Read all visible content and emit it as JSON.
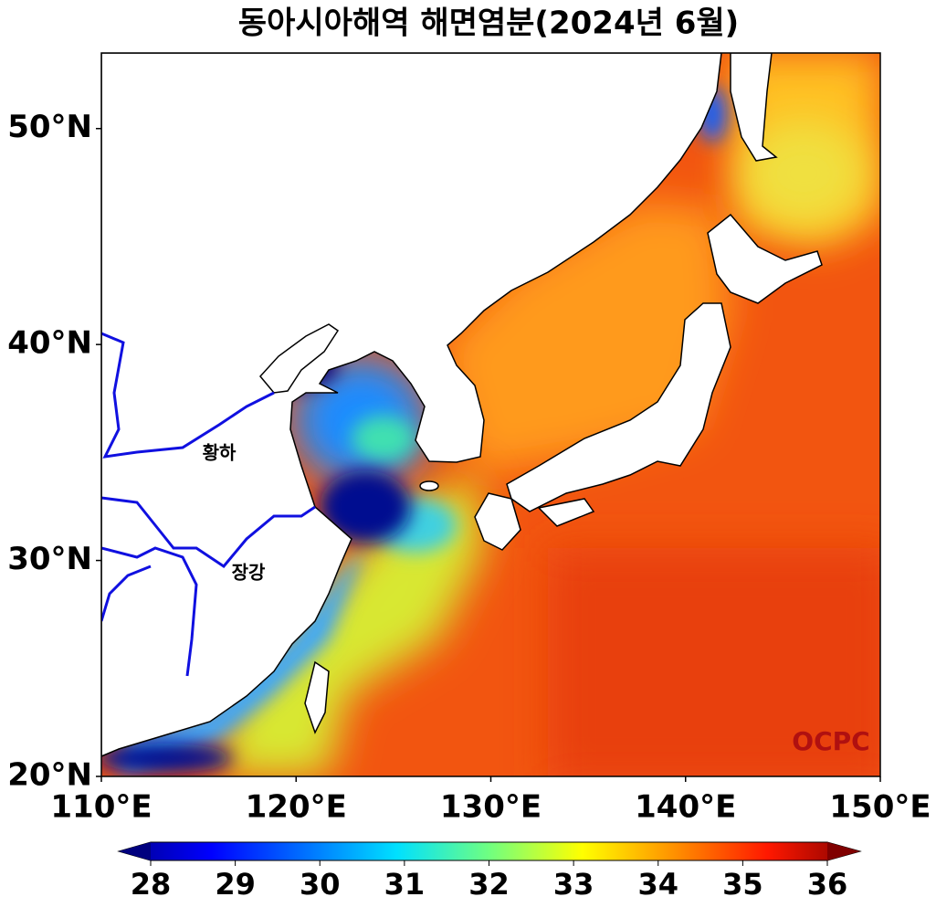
{
  "title": "동아시아해역 해면염분(2024년 6월)",
  "map": {
    "xlim": [
      110,
      150
    ],
    "ylim": [
      20,
      53.5
    ],
    "xticks": [
      {
        "value": 110,
        "label": "110°E"
      },
      {
        "value": 120,
        "label": "120°E"
      },
      {
        "value": 130,
        "label": "130°E"
      },
      {
        "value": 140,
        "label": "140°E"
      },
      {
        "value": 150,
        "label": "150°E"
      }
    ],
    "yticks": [
      {
        "value": 20,
        "label": "20°N"
      },
      {
        "value": 30,
        "label": "30°N"
      },
      {
        "value": 40,
        "label": "40°N"
      },
      {
        "value": 50,
        "label": "50°N"
      }
    ],
    "labels": [
      "황하",
      "장강"
    ],
    "watermark": "OCPC"
  },
  "colorbar": {
    "lim": [
      28,
      36
    ],
    "ticks": [
      28,
      29,
      30,
      31,
      32,
      33,
      34,
      35,
      36
    ]
  }
}
